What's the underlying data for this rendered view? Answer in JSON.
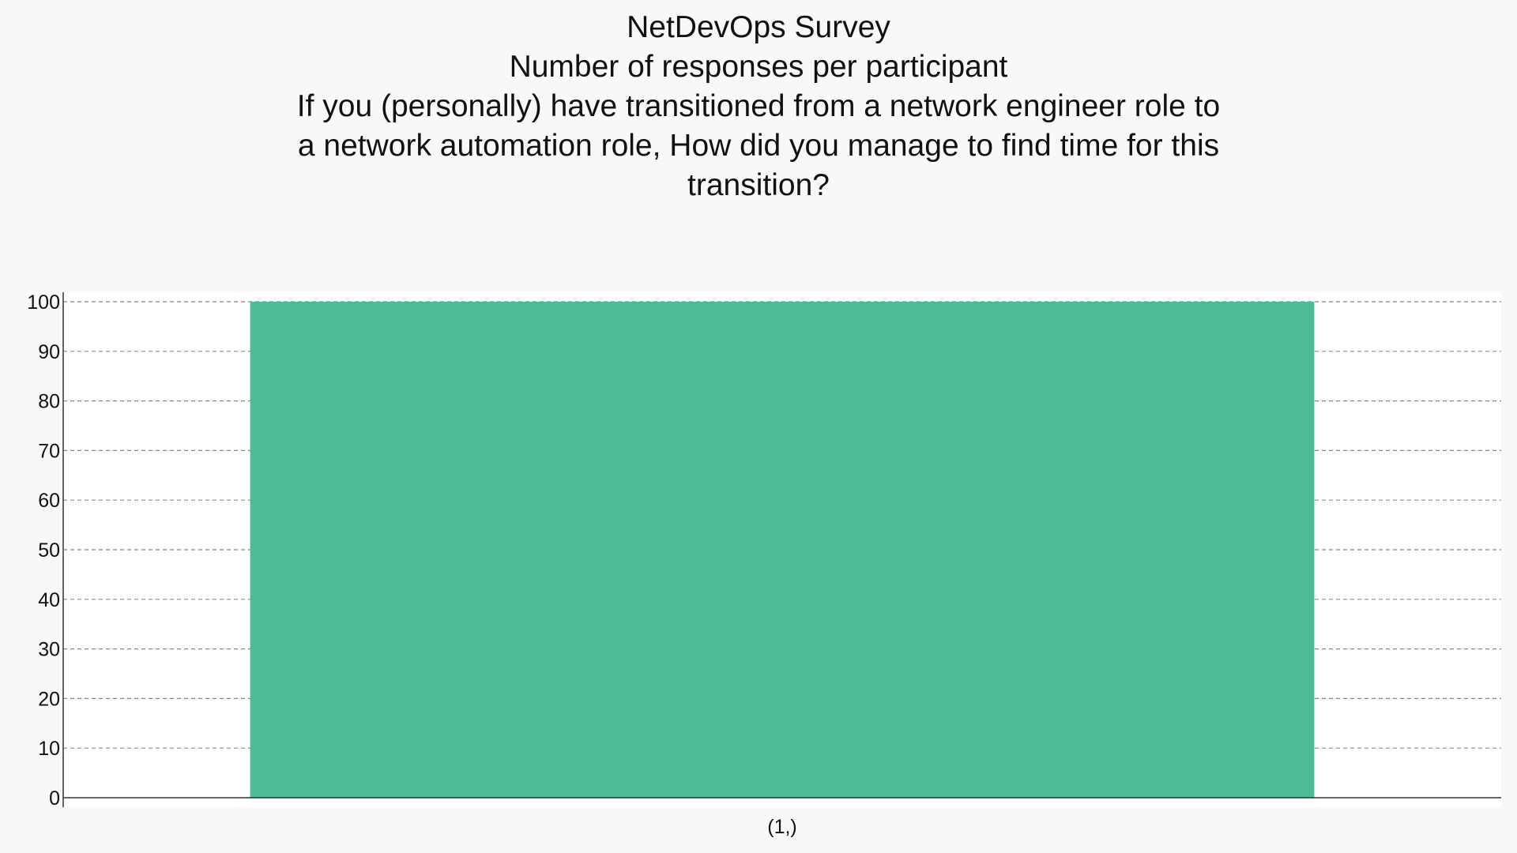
{
  "title_lines": [
    "NetDevOps Survey",
    "Number of responses per participant",
    "If you (personally) have transitioned from a network engineer role to",
    "a network automation role, How did you manage to find time for this",
    "transition?"
  ],
  "colors": {
    "bar": "#4dbb98",
    "page_background": "#f8f8f8",
    "plot_background": "#ffffff",
    "grid": "#888888",
    "axis": "#333333"
  },
  "chart_data": {
    "type": "bar",
    "title": "NetDevOps Survey\nNumber of responses per participant\nIf you (personally) have transitioned from a network engineer role to a network automation role, How did you manage to find time for this transition?",
    "categories": [
      "(1,)"
    ],
    "values": [
      100
    ],
    "xlabel": "",
    "ylabel": "",
    "ylim": [
      0,
      100
    ],
    "yticks": [
      0,
      10,
      20,
      30,
      40,
      50,
      60,
      70,
      80,
      90,
      100
    ],
    "grid": true,
    "grid_style": "dashed horizontal",
    "legend": false
  }
}
